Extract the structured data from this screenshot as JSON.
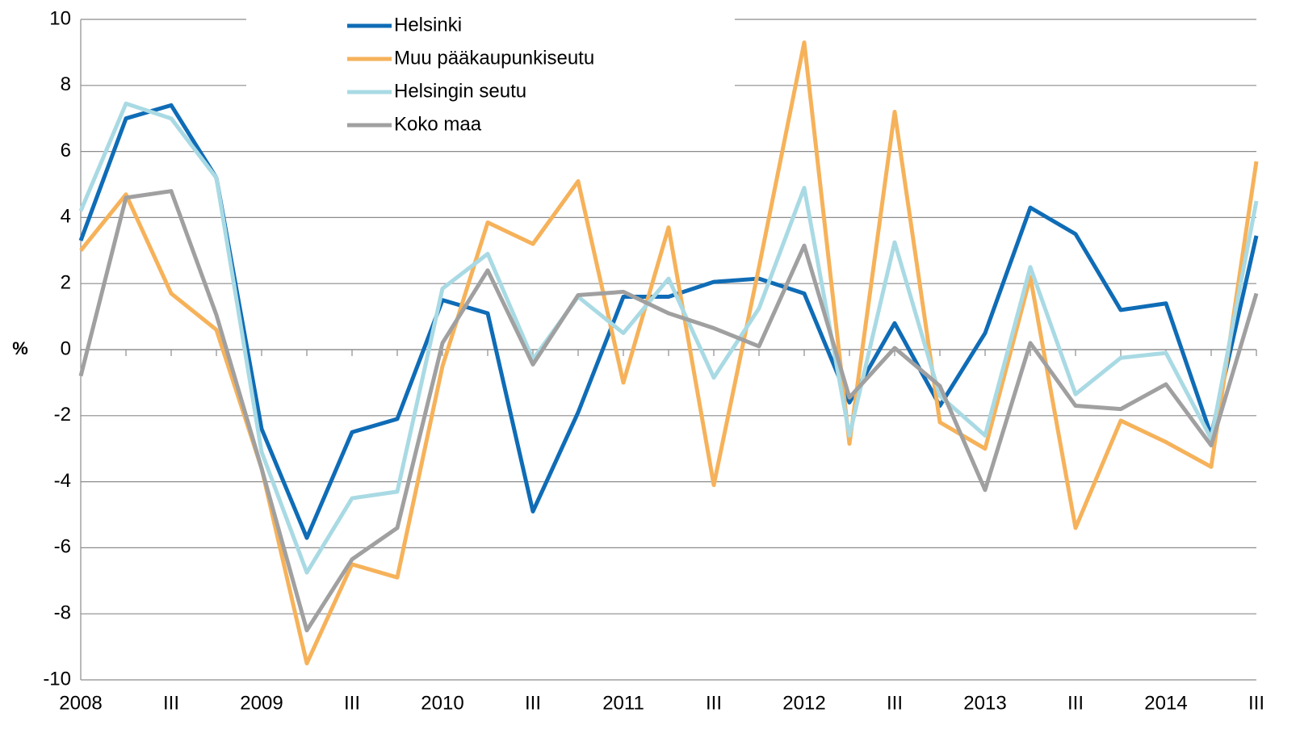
{
  "chart_data": {
    "type": "line",
    "y_label": "%",
    "categories": [
      "2008",
      null,
      "III",
      null,
      "2009",
      null,
      "III",
      null,
      "2010",
      null,
      "III",
      null,
      "2011",
      null,
      "III",
      null,
      "2012",
      null,
      "III",
      null,
      "2013",
      null,
      "III",
      null,
      "2014",
      null,
      "III"
    ],
    "series": [
      {
        "name": "Helsinki",
        "color": "#0f6cb6",
        "values": [
          3.3,
          7.0,
          7.4,
          5.2,
          -2.4,
          -5.7,
          -2.5,
          -2.1,
          1.5,
          1.1,
          -4.9,
          -1.9,
          1.6,
          1.6,
          2.05,
          2.15,
          1.7,
          -1.6,
          0.8,
          -1.7,
          0.5,
          4.3,
          3.5,
          1.2,
          1.4,
          -2.6,
          3.45
        ]
      },
      {
        "name": "Muu pääkaupunkiseutu",
        "color": "#f6b25a",
        "values": [
          3.0,
          4.7,
          1.7,
          0.6,
          -3.6,
          -9.5,
          -6.5,
          -6.9,
          -0.5,
          3.85,
          3.2,
          5.1,
          -1.0,
          3.7,
          -4.1,
          2.5,
          9.3,
          -2.85,
          7.2,
          -2.2,
          -3.0,
          2.2,
          -5.4,
          -2.15,
          -2.8,
          -3.55,
          5.7
        ]
      },
      {
        "name": "Helsingin seutu",
        "color": "#a9dae4",
        "values": [
          4.2,
          7.45,
          7.0,
          5.2,
          -3.1,
          -6.75,
          -4.5,
          -4.3,
          1.85,
          2.9,
          -0.3,
          1.6,
          0.5,
          2.15,
          -0.85,
          1.25,
          4.9,
          -2.6,
          3.25,
          -1.4,
          -2.6,
          2.5,
          -1.35,
          -0.25,
          -0.1,
          -2.7,
          4.5
        ]
      },
      {
        "name": "Koko maa",
        "color": "#a0a0a0",
        "values": [
          -0.8,
          4.6,
          4.8,
          1.05,
          -3.6,
          -8.5,
          -6.35,
          -5.4,
          0.2,
          2.4,
          -0.45,
          1.65,
          1.75,
          1.1,
          0.65,
          0.1,
          3.15,
          -1.45,
          0.05,
          -1.1,
          -4.25,
          0.2,
          -1.7,
          -1.8,
          -1.05,
          -2.9,
          1.7
        ]
      }
    ],
    "ylim": [
      -10,
      10
    ],
    "yticks": [
      -10,
      -8,
      -6,
      -4,
      -2,
      0,
      2,
      4,
      6,
      8,
      10
    ],
    "grid": true,
    "legend": "top"
  }
}
